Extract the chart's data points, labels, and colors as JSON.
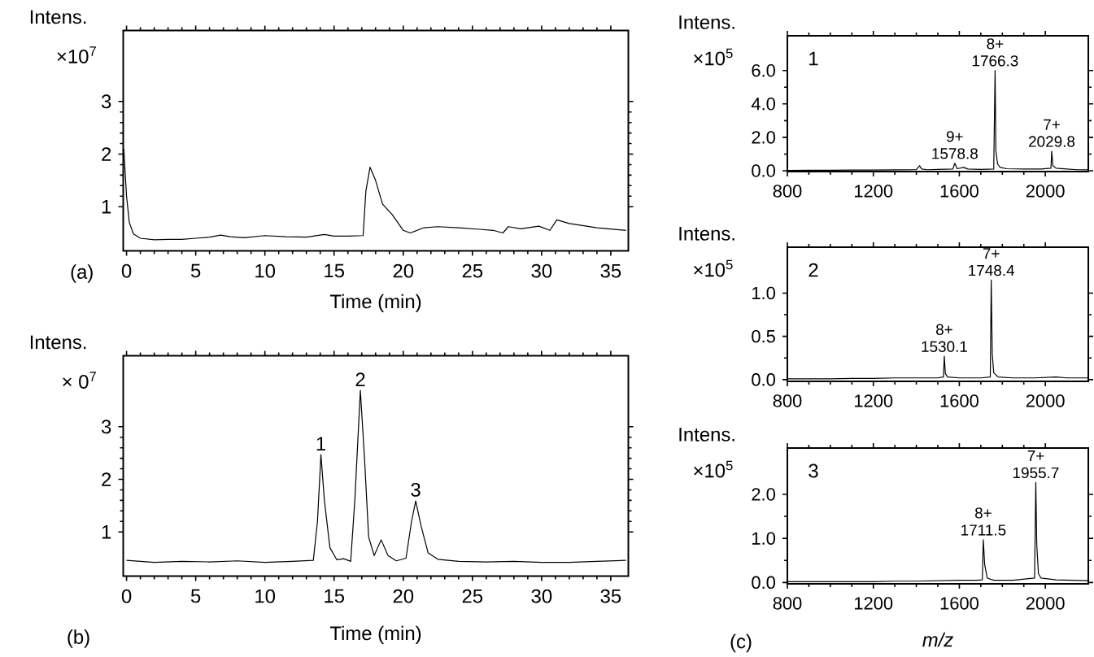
{
  "chart_data": [
    {
      "type": "line",
      "ylabel": "Intens.",
      "xlabel": "Time (min)",
      "color": "#000000",
      "line_style": "solid",
      "x": [
        -0.2,
        0.0,
        0.2,
        0.5,
        1.0,
        2.0,
        3.0,
        4.0,
        5.0,
        6.0,
        6.8,
        7.5,
        8.5,
        10.0,
        11.5,
        13.0,
        14.3,
        15.0,
        16.0,
        17.1,
        17.3,
        17.6,
        18.0,
        18.5,
        19.2,
        20.0,
        20.5,
        21.5,
        22.5,
        24.0,
        25.5,
        26.5,
        27.2,
        27.6,
        28.5,
        29.8,
        30.6,
        31.1,
        32.0,
        34.0,
        36.1
      ],
      "values": [
        2.1,
        1.2,
        0.7,
        0.48,
        0.4,
        0.37,
        0.38,
        0.38,
        0.4,
        0.42,
        0.46,
        0.43,
        0.41,
        0.45,
        0.43,
        0.42,
        0.47,
        0.44,
        0.44,
        0.45,
        1.3,
        1.75,
        1.5,
        1.05,
        0.85,
        0.55,
        0.5,
        0.6,
        0.62,
        0.6,
        0.57,
        0.55,
        0.5,
        0.62,
        0.58,
        0.63,
        0.55,
        0.75,
        0.68,
        0.6,
        0.55
      ],
      "xlim": [
        -0.24,
        36.27
      ],
      "ylim": [
        0.16,
        4.35
      ],
      "xticks": [
        0,
        5,
        10,
        15,
        20,
        25,
        30,
        35
      ],
      "yticks": [
        1,
        2,
        3
      ],
      "annotations": [
        "×10$^{7}$",
        "(a)"
      ]
    },
    {
      "type": "line",
      "ylabel": "Intens.",
      "xlabel": "Time (min)",
      "color": "#000000",
      "line_style": "solid",
      "x": [
        0.0,
        2.0,
        4.0,
        6.0,
        8.0,
        10.0,
        12.0,
        13.5,
        13.8,
        14.05,
        14.3,
        14.7,
        15.2,
        15.7,
        16.2,
        16.5,
        16.9,
        17.2,
        17.5,
        17.9,
        18.4,
        18.9,
        19.5,
        20.2,
        20.6,
        20.9,
        21.3,
        21.8,
        22.5,
        24.0,
        26.0,
        28.0,
        30.0,
        32.0,
        34.0,
        36.1
      ],
      "values": [
        0.46,
        0.42,
        0.44,
        0.43,
        0.45,
        0.42,
        0.44,
        0.46,
        1.2,
        2.47,
        1.6,
        0.7,
        0.47,
        0.49,
        0.44,
        1.6,
        3.69,
        2.4,
        0.9,
        0.55,
        0.85,
        0.55,
        0.45,
        0.5,
        1.2,
        1.59,
        1.1,
        0.6,
        0.48,
        0.44,
        0.43,
        0.44,
        0.42,
        0.42,
        0.44,
        0.46
      ],
      "xlim": [
        -0.24,
        36.27
      ],
      "ylim": [
        0.16,
        4.35
      ],
      "xticks": [
        0,
        5,
        10,
        15,
        20,
        25,
        30,
        35
      ],
      "yticks": [
        1,
        2,
        3
      ],
      "annotations": [
        "× 0$^{7}$",
        "(b)",
        {
          "text": "1",
          "x": 14.05,
          "y": 2.47
        },
        {
          "text": "2",
          "x": 16.9,
          "y": 3.69
        },
        {
          "text": "3",
          "x": 20.9,
          "y": 1.59
        }
      ]
    },
    {
      "type": "line",
      "ylabel": "Intens.",
      "color": "#000000",
      "line_style": "solid",
      "x": [
        800,
        900,
        1000,
        1100,
        1200,
        1300,
        1400,
        1415,
        1425,
        1450,
        1500,
        1570,
        1578.8,
        1590,
        1620,
        1640,
        1700,
        1760,
        1766.3,
        1770,
        1778,
        1790,
        1820,
        1900,
        1980,
        2026,
        2029.8,
        2035,
        2050,
        2100,
        2150,
        2200
      ],
      "values": [
        0.02,
        0.03,
        0.03,
        0.04,
        0.04,
        0.05,
        0.06,
        0.3,
        0.1,
        0.06,
        0.08,
        0.1,
        0.45,
        0.12,
        0.2,
        0.1,
        0.08,
        0.1,
        6.0,
        1.2,
        0.4,
        0.2,
        0.12,
        0.1,
        0.1,
        0.15,
        1.17,
        0.3,
        0.15,
        0.1,
        0.06,
        0.05
      ],
      "xlim": [
        800,
        2200
      ],
      "ylim": [
        -0.05,
        8.08
      ],
      "xticks": [
        800,
        1200,
        1600,
        2000
      ],
      "yticks": [
        {
          "value": 0,
          "label": "0.0"
        },
        {
          "value": 2,
          "label": "2.0"
        },
        {
          "value": 4,
          "label": "4.0"
        },
        {
          "value": 6,
          "label": "6.0"
        }
      ],
      "annotations": [
        "×10$^{5}$",
        "1",
        {
          "text": "8+",
          "x": 1766.3,
          "y": 6.0
        },
        {
          "text": "1766.3",
          "x": 1766.3,
          "y": 6.0
        },
        {
          "text": "9+",
          "x": 1578.8,
          "y": 0.45
        },
        {
          "text": "1578.8",
          "x": 1578.8,
          "y": 0.45
        },
        {
          "text": "7+",
          "x": 2029.8,
          "y": 1.17
        },
        {
          "text": "2029.8",
          "x": 2029.8,
          "y": 1.17
        }
      ]
    },
    {
      "type": "line",
      "ylabel": "Intens.",
      "color": "#000000",
      "line_style": "solid",
      "x": [
        800,
        900,
        1000,
        1100,
        1200,
        1300,
        1400,
        1500,
        1526,
        1530.1,
        1535,
        1545,
        1600,
        1700,
        1744,
        1748.4,
        1753,
        1760,
        1780,
        1850,
        1950,
        2050,
        2100,
        2200
      ],
      "values": [
        0.01,
        0.01,
        0.01,
        0.015,
        0.015,
        0.02,
        0.02,
        0.02,
        0.03,
        0.27,
        0.07,
        0.03,
        0.02,
        0.02,
        0.03,
        1.15,
        0.3,
        0.08,
        0.03,
        0.02,
        0.02,
        0.03,
        0.02,
        0.02
      ],
      "xlim": [
        800,
        2200
      ],
      "ylim": [
        -0.02,
        1.53
      ],
      "xticks": [
        800,
        1200,
        1600,
        2000
      ],
      "yticks": [
        {
          "value": 0,
          "label": "0.0"
        },
        {
          "value": 0.5,
          "label": "0.5"
        },
        {
          "value": 1.0,
          "label": "1.0"
        }
      ],
      "annotations": [
        "×10$^{5}$",
        "2",
        {
          "text": "8+",
          "x": 1530.1,
          "y": 0.27
        },
        {
          "text": "1530.1",
          "x": 1530.1,
          "y": 0.27
        },
        {
          "text": "7+",
          "x": 1748.4,
          "y": 1.15
        },
        {
          "text": "1748.4",
          "x": 1748.4,
          "y": 1.15
        }
      ]
    },
    {
      "type": "line",
      "ylabel": "Intens.",
      "xlabel": "m/z",
      "color": "#000000",
      "line_style": "solid",
      "x": [
        800,
        900,
        1000,
        1100,
        1200,
        1300,
        1400,
        1500,
        1600,
        1680,
        1707,
        1711.5,
        1718,
        1730,
        1760,
        1850,
        1950,
        1955.7,
        1960,
        1962,
        1968,
        1980,
        2050,
        2120,
        2200
      ],
      "values": [
        0.02,
        0.02,
        0.02,
        0.02,
        0.02,
        0.03,
        0.03,
        0.04,
        0.05,
        0.05,
        0.06,
        0.97,
        0.4,
        0.1,
        0.05,
        0.05,
        0.1,
        2.27,
        0.9,
        0.7,
        0.2,
        0.1,
        0.06,
        0.05,
        0.04
      ],
      "xlim": [
        800,
        2200
      ],
      "ylim": [
        -0.03,
        3.05
      ],
      "xticks": [
        800,
        1200,
        1600,
        2000
      ],
      "yticks": [
        {
          "value": 0,
          "label": "0.0"
        },
        {
          "value": 1.0,
          "label": "1.0"
        },
        {
          "value": 2.0,
          "label": "2.0"
        }
      ],
      "annotations": [
        "×10$^{5}$",
        "3",
        "(c)",
        {
          "text": "8+",
          "x": 1711.5,
          "y": 0.97
        },
        {
          "text": "1711.5",
          "x": 1711.5,
          "y": 0.97
        },
        {
          "text": "7+",
          "x": 1955.7,
          "y": 2.27
        },
        {
          "text": "1955.7",
          "x": 1955.7,
          "y": 2.27
        }
      ]
    }
  ]
}
